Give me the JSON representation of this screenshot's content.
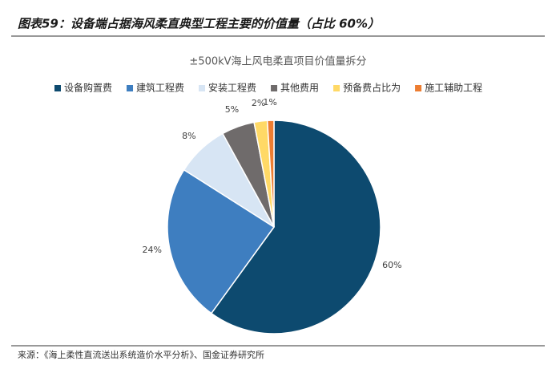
{
  "header": {
    "title": "图表59：设备端占据海风柔直典型工程主要的价值量（占比 60%）"
  },
  "chart_data": {
    "type": "pie",
    "title": "±500kV海上风电柔直项目价值量拆分",
    "categories": [
      "设备购置费",
      "建筑工程费",
      "安装工程费",
      "其他费用",
      "预备费占比为",
      "施工辅助工程"
    ],
    "values": [
      60,
      24,
      8,
      5,
      2,
      1
    ],
    "value_labels": [
      "60%",
      "24%",
      "8%",
      "5%",
      "2%",
      "1%"
    ],
    "colors": [
      "#0d4a6f",
      "#3e7ec0",
      "#d7e5f4",
      "#6f6b6b",
      "#ffd966",
      "#ed7d31"
    ],
    "legend": "top"
  },
  "footer": {
    "source": "来源：《海上柔性直流送出系统造价水平分析》、国金证券研究所"
  }
}
